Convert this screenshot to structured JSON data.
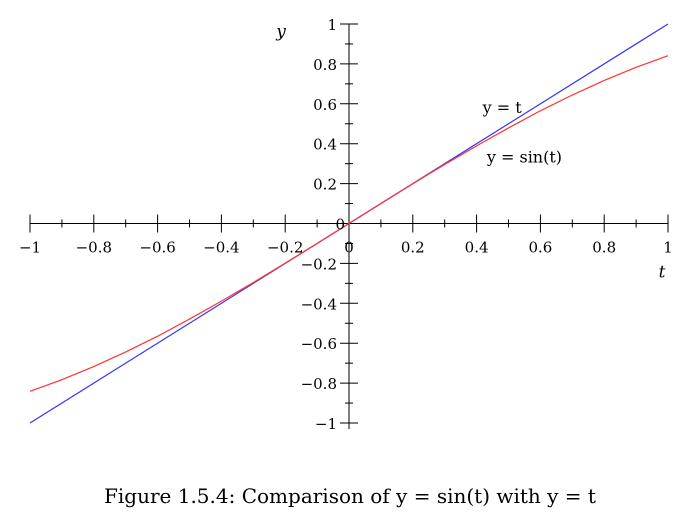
{
  "caption": "Figure 1.5.4: Comparison of y = sin(t) with y = t",
  "chart_data": {
    "type": "line",
    "title": "",
    "xlabel": "t",
    "ylabel": "y",
    "xlim": [
      -1,
      1
    ],
    "ylim": [
      -1,
      1
    ],
    "grid": false,
    "x_ticks": [
      -1,
      -0.8,
      -0.6,
      -0.4,
      -0.2,
      0,
      0.2,
      0.4,
      0.6,
      0.8,
      1
    ],
    "x_tick_labels": [
      "−1",
      "−0.8",
      "−0.6",
      "−0.4",
      "−0.2",
      "0",
      "0.2",
      "0.4",
      "0.6",
      "0.8",
      "1"
    ],
    "y_ticks": [
      -1,
      -0.8,
      -0.6,
      -0.4,
      -0.2,
      0,
      0.2,
      0.4,
      0.6,
      0.8,
      1
    ],
    "y_tick_labels": [
      "−1",
      "−0.8",
      "−0.6",
      "−0.4",
      "−0.2",
      "0",
      "0.2",
      "0.4",
      "0.6",
      "0.8",
      "1"
    ],
    "series": [
      {
        "name": "y = t",
        "color": "#3333ff",
        "x": [
          -1,
          1
        ],
        "y": [
          -1,
          1
        ]
      },
      {
        "name": "y = sin(t)",
        "color": "#ff3333",
        "x": [
          -1,
          -0.9,
          -0.8,
          -0.7,
          -0.6,
          -0.5,
          -0.4,
          -0.3,
          -0.2,
          -0.1,
          0,
          0.1,
          0.2,
          0.3,
          0.4,
          0.5,
          0.6,
          0.7,
          0.8,
          0.9,
          1
        ],
        "y": [
          -0.841,
          -0.783,
          -0.717,
          -0.644,
          -0.565,
          -0.479,
          -0.389,
          -0.296,
          -0.199,
          -0.1,
          0,
          0.1,
          0.199,
          0.296,
          0.389,
          0.479,
          0.565,
          0.644,
          0.717,
          0.783,
          0.841
        ]
      }
    ],
    "annotations": [
      {
        "text": "y = t",
        "x": 0.48,
        "y": 0.58
      },
      {
        "text": "y = sin(t)",
        "x": 0.55,
        "y": 0.33
      }
    ]
  }
}
